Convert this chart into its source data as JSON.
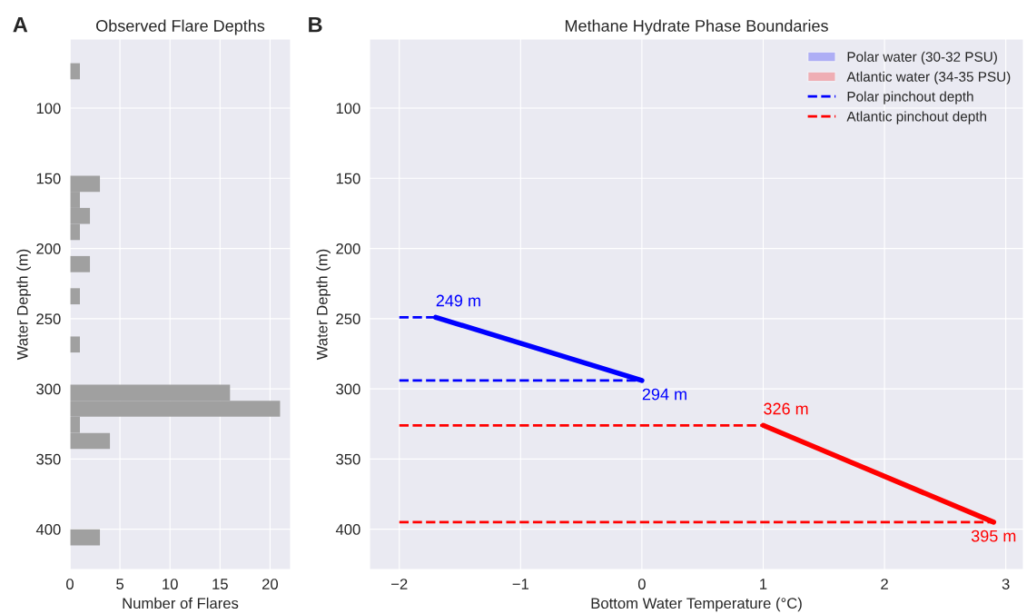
{
  "chart_data": [
    {
      "type": "histogram",
      "orientation": "horizontal",
      "title": "Observed Flare Depths",
      "xlabel": "Number of Flares",
      "ylabel": "Water Depth (m)",
      "bins": [
        68.0,
        79.5,
        90.9,
        102.4,
        113.8,
        125.3,
        136.7,
        148.2,
        159.6,
        171.1,
        182.5,
        194.0,
        205.4,
        216.9,
        228.3,
        239.8,
        251.2,
        262.7,
        274.1,
        285.6,
        297.0,
        308.5,
        319.9,
        331.4,
        342.8,
        354.3,
        365.7,
        377.2,
        388.6,
        400.1,
        411.5
      ],
      "values": [
        1,
        0,
        0,
        0,
        0,
        0,
        0,
        3,
        1,
        2,
        1,
        0,
        2,
        0,
        1,
        0,
        0,
        1,
        0,
        0,
        16,
        21,
        1,
        4,
        0,
        0,
        0,
        0,
        0,
        3
      ],
      "color": "#a0a0a0",
      "xlim": [
        0,
        22.05
      ],
      "xticks": [
        0,
        5,
        10,
        15,
        20
      ],
      "ylim": [
        428.7,
        50.8
      ],
      "yticks": [
        100,
        150,
        200,
        250,
        300,
        350,
        400
      ],
      "grid": true,
      "annotations": [
        "A"
      ]
    },
    {
      "type": "line",
      "title": "Methane Hydrate Phase Boundaries",
      "xlabel": "Bottom Water Temperature (°C)",
      "ylabel": "Water Depth (m)",
      "series": [
        {
          "name": "Polar water (30-32 PSU)",
          "line_style": "solid",
          "color": "#0000ff",
          "x": [
            -1.7,
            0
          ],
          "values": [
            249,
            294
          ]
        },
        {
          "name": "Atlantic water (34-35 PSU)",
          "line_style": "solid",
          "color": "#ff0000",
          "x": [
            1,
            2.9
          ],
          "values": [
            326,
            395
          ]
        },
        {
          "name": "Polar pinchout depth",
          "color": "#0000ff",
          "line_style": "dashed",
          "x": [
            -2,
            -1.7
          ],
          "values": [
            249,
            249
          ]
        },
        {
          "color": "#0000ff",
          "line_style": "dashed",
          "x": [
            -2,
            0
          ],
          "values": [
            294,
            294
          ]
        },
        {
          "name": "Atlantic pinchout depth",
          "color": "#ff0000",
          "line_style": "dashed",
          "x": [
            -2,
            1
          ],
          "values": [
            326,
            326
          ]
        },
        {
          "color": "#ff0000",
          "line_style": "dashed",
          "x": [
            -2,
            2.9
          ],
          "values": [
            395,
            395
          ]
        }
      ],
      "xlim": [
        -2.245,
        3.145
      ],
      "xticks": [
        {
          "value": -2,
          "label": "−2"
        },
        {
          "value": -1,
          "label": "−1"
        },
        0,
        1,
        2,
        3
      ],
      "ylim": [
        428.7,
        50.8
      ],
      "yticks": [
        100,
        150,
        200,
        250,
        300,
        350,
        400
      ],
      "grid": true,
      "legend": "top right",
      "annotations": [
        "B",
        {
          "text": "249 m",
          "x": -1.7,
          "y": 249
        },
        {
          "text": "294 m",
          "x": 0,
          "y": 294
        },
        {
          "text": "326 m",
          "x": 1,
          "y": 326
        },
        {
          "text": "395 m",
          "x": 2.9,
          "y": 395
        }
      ]
    }
  ]
}
